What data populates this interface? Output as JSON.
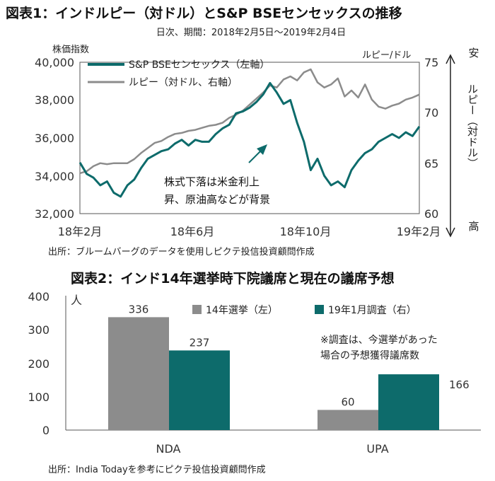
{
  "chart_data": [
    {
      "type": "line",
      "title": "図表1：インドルピー（対ドル）とS&P BSEセンセックスの推移",
      "subtitle": "日次、期間：2018年2月5日～2019年2月4日",
      "left_axis_label": "株価指数",
      "right_axis_label": "ルピー/ドル",
      "ylim_left": [
        32000,
        40000
      ],
      "yticks_left": [
        "40,000",
        "38,000",
        "36,000",
        "34,000",
        "32,000"
      ],
      "ylim_right": [
        60,
        75
      ],
      "yticks_right": [
        "75",
        "70",
        "65",
        "60"
      ],
      "right_axis_side_top": "安",
      "right_axis_side_mid": "ルピー（対ドル）",
      "right_axis_side_bottom": "高",
      "xticks": [
        "18年2月",
        "18年6月",
        "18年10月",
        "19年2月"
      ],
      "annotation_line1": "株式下落は米金利上",
      "annotation_line2": "昇、原油高などが背景",
      "grid": false,
      "series": [
        {
          "name": "S&P BSEセンセックス（左軸）",
          "color": "#0d6b6b",
          "axis": "left",
          "x": [
            0,
            0.02,
            0.04,
            0.06,
            0.08,
            0.1,
            0.12,
            0.14,
            0.16,
            0.18,
            0.2,
            0.22,
            0.24,
            0.26,
            0.28,
            0.3,
            0.32,
            0.34,
            0.36,
            0.38,
            0.4,
            0.42,
            0.44,
            0.46,
            0.48,
            0.5,
            0.52,
            0.54,
            0.56,
            0.58,
            0.6,
            0.62,
            0.64,
            0.66,
            0.68,
            0.7,
            0.72,
            0.74,
            0.76,
            0.78,
            0.8,
            0.82,
            0.84,
            0.86,
            0.88,
            0.9,
            0.92,
            0.94,
            0.96,
            0.98,
            1
          ],
          "values": [
            34700,
            34100,
            33900,
            33500,
            33700,
            33100,
            32900,
            33500,
            33800,
            34400,
            34900,
            35100,
            35300,
            35400,
            35700,
            35900,
            35600,
            35900,
            35800,
            35800,
            36200,
            36500,
            36700,
            37300,
            37400,
            37600,
            37900,
            38300,
            38900,
            38400,
            37800,
            38000,
            36800,
            35800,
            34300,
            34900,
            34000,
            33500,
            33700,
            33400,
            34300,
            34800,
            35200,
            35400,
            35800,
            36000,
            36200,
            36000,
            36300,
            36100,
            36600
          ]
        },
        {
          "name": "ルピー（対ドル、右軸）",
          "color": "#8c8c8c",
          "axis": "right",
          "x": [
            0,
            0.02,
            0.04,
            0.06,
            0.08,
            0.1,
            0.12,
            0.14,
            0.16,
            0.18,
            0.2,
            0.22,
            0.24,
            0.26,
            0.28,
            0.3,
            0.32,
            0.34,
            0.36,
            0.38,
            0.4,
            0.42,
            0.44,
            0.46,
            0.48,
            0.5,
            0.52,
            0.54,
            0.56,
            0.58,
            0.6,
            0.62,
            0.64,
            0.66,
            0.68,
            0.7,
            0.72,
            0.74,
            0.76,
            0.78,
            0.8,
            0.82,
            0.84,
            0.86,
            0.88,
            0.9,
            0.92,
            0.94,
            0.96,
            0.98,
            1
          ],
          "values": [
            64.0,
            64.2,
            64.7,
            65.0,
            64.9,
            65.0,
            65.0,
            65.0,
            65.4,
            66.0,
            66.5,
            67.0,
            67.2,
            67.6,
            67.9,
            68.0,
            68.2,
            68.3,
            68.5,
            68.7,
            68.8,
            69.0,
            69.5,
            69.8,
            70.2,
            70.8,
            71.4,
            72.0,
            72.7,
            72.5,
            73.3,
            73.6,
            73.2,
            74.0,
            74.3,
            73.0,
            72.5,
            72.8,
            73.4,
            71.6,
            72.2,
            71.5,
            72.8,
            71.3,
            70.6,
            70.4,
            70.7,
            70.9,
            71.3,
            71.5,
            71.8
          ]
        }
      ],
      "source": "出所：ブルームバーグのデータを使用しピクテ投信投資顧問作成"
    },
    {
      "type": "bar",
      "title": "図表2：インド14年選挙時下院議席と現在の議席予想",
      "ylabel": "人",
      "ylim": [
        0,
        400
      ],
      "yticks": [
        "400",
        "300",
        "200",
        "100",
        "0"
      ],
      "categories": [
        "NDA",
        "UPA"
      ],
      "series": [
        {
          "name": "14年選挙（左）",
          "color": "#8c8c8c",
          "values": [
            336,
            60
          ]
        },
        {
          "name": "19年1月調査（右）",
          "color": "#0d6b6b",
          "values": [
            237,
            166
          ]
        }
      ],
      "value_labels": [
        [
          "336",
          "60"
        ],
        [
          "237",
          "166"
        ]
      ],
      "note_line1": "※調査は、今選挙があった",
      "note_line2": "場合の予想獲得議席数",
      "grid": false,
      "source": "出所：India Todayを参考にピクテ投信投資顧問作成"
    }
  ]
}
